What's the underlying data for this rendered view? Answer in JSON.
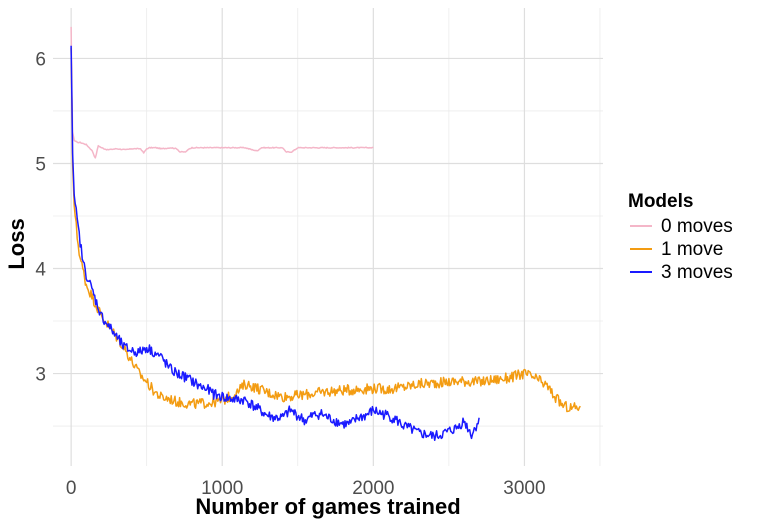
{
  "chart_data": {
    "type": "line",
    "title": "",
    "xlabel": "Number of games trained",
    "ylabel": "Loss",
    "xlim": [
      -120,
      3520
    ],
    "ylim": [
      2.12,
      6.48
    ],
    "x_ticks": [
      0,
      1000,
      2000,
      3000
    ],
    "x_tick_labels": [
      "0",
      "1000",
      "2000",
      "3000"
    ],
    "y_ticks": [
      3,
      4,
      5,
      6
    ],
    "y_tick_labels": [
      "3",
      "4",
      "5",
      "6"
    ],
    "grid": true,
    "legend": {
      "title": "Models",
      "position": "right"
    },
    "series": [
      {
        "name": "0 moves",
        "color": "#f4b6c8",
        "x": [
          0,
          5,
          10,
          20,
          40,
          60,
          100,
          140,
          160,
          180,
          200,
          240,
          300,
          360,
          400,
          460,
          480,
          500,
          520,
          560,
          600,
          660,
          700,
          720,
          760,
          780,
          800,
          900,
          1000,
          1100,
          1150,
          1200,
          1230,
          1260,
          1300,
          1400,
          1420,
          1460,
          1500,
          1600,
          1700,
          1800,
          1900,
          2000
        ],
        "y": [
          6.3,
          5.7,
          5.3,
          5.22,
          5.2,
          5.2,
          5.18,
          5.12,
          5.05,
          5.17,
          5.15,
          5.13,
          5.14,
          5.13,
          5.14,
          5.14,
          5.1,
          5.14,
          5.15,
          5.15,
          5.14,
          5.15,
          5.14,
          5.11,
          5.11,
          5.14,
          5.15,
          5.15,
          5.15,
          5.15,
          5.15,
          5.13,
          5.12,
          5.15,
          5.15,
          5.15,
          5.11,
          5.11,
          5.15,
          5.15,
          5.15,
          5.15,
          5.15,
          5.15
        ]
      },
      {
        "name": "1 move",
        "color": "#f39c12",
        "x": [
          0,
          10,
          20,
          40,
          60,
          100,
          150,
          200,
          250,
          300,
          350,
          400,
          450,
          500,
          550,
          600,
          650,
          700,
          800,
          900,
          1000,
          1100,
          1150,
          1200,
          1300,
          1400,
          1500,
          1600,
          1700,
          1800,
          1900,
          2000,
          2100,
          2200,
          2300,
          2400,
          2500,
          2600,
          2700,
          2800,
          2900,
          3000,
          3050,
          3100,
          3150,
          3200,
          3250,
          3300,
          3350,
          3370
        ],
        "y": [
          6.1,
          5.0,
          4.6,
          4.3,
          4.1,
          3.85,
          3.7,
          3.55,
          3.45,
          3.35,
          3.25,
          3.12,
          3.0,
          2.92,
          2.83,
          2.77,
          2.76,
          2.73,
          2.71,
          2.72,
          2.74,
          2.82,
          2.9,
          2.88,
          2.82,
          2.78,
          2.79,
          2.81,
          2.83,
          2.84,
          2.85,
          2.86,
          2.85,
          2.87,
          2.9,
          2.91,
          2.92,
          2.93,
          2.92,
          2.94,
          2.96,
          3.0,
          2.97,
          2.93,
          2.88,
          2.78,
          2.7,
          2.67,
          2.68,
          2.69
        ]
      },
      {
        "name": "3 moves",
        "color": "#1a1aff",
        "x": [
          0,
          10,
          20,
          40,
          60,
          80,
          100,
          150,
          200,
          250,
          300,
          350,
          400,
          450,
          500,
          550,
          600,
          650,
          700,
          750,
          800,
          850,
          900,
          950,
          1000,
          1050,
          1100,
          1150,
          1200,
          1250,
          1300,
          1350,
          1400,
          1450,
          1500,
          1550,
          1600,
          1650,
          1700,
          1750,
          1800,
          1850,
          1900,
          1950,
          2000,
          2050,
          2100,
          2150,
          2200,
          2250,
          2300,
          2350,
          2400,
          2450,
          2500,
          2550,
          2600,
          2650,
          2680,
          2700
        ],
        "y": [
          6.12,
          5.1,
          4.7,
          4.45,
          4.25,
          4.05,
          3.95,
          3.75,
          3.55,
          3.45,
          3.35,
          3.25,
          3.22,
          3.2,
          3.25,
          3.2,
          3.15,
          3.05,
          3.0,
          2.97,
          2.93,
          2.88,
          2.85,
          2.8,
          2.78,
          2.76,
          2.75,
          2.75,
          2.7,
          2.65,
          2.6,
          2.58,
          2.58,
          2.65,
          2.6,
          2.55,
          2.6,
          2.62,
          2.58,
          2.55,
          2.52,
          2.52,
          2.58,
          2.6,
          2.65,
          2.62,
          2.6,
          2.56,
          2.5,
          2.47,
          2.43,
          2.42,
          2.4,
          2.42,
          2.45,
          2.48,
          2.55,
          2.42,
          2.5,
          2.58
        ]
      }
    ]
  }
}
